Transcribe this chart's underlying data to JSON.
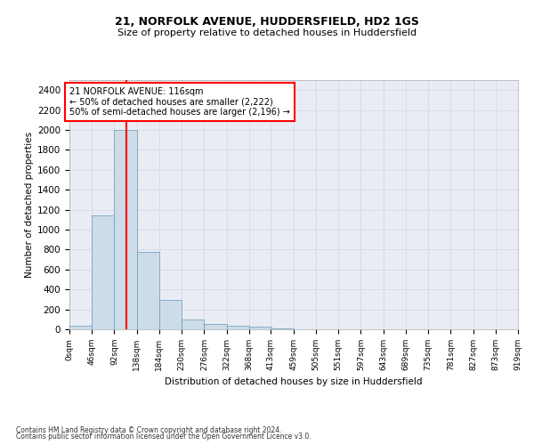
{
  "title1": "21, NORFOLK AVENUE, HUDDERSFIELD, HD2 1GS",
  "title2": "Size of property relative to detached houses in Huddersfield",
  "xlabel": "Distribution of detached houses by size in Huddersfield",
  "ylabel": "Number of detached properties",
  "footnote1": "Contains HM Land Registry data © Crown copyright and database right 2024.",
  "footnote2": "Contains public sector information licensed under the Open Government Licence v3.0.",
  "property_size": 116,
  "property_label": "21 NORFOLK AVENUE: 116sqm",
  "annotation_line1": "← 50% of detached houses are smaller (2,222)",
  "annotation_line2": "50% of semi-detached houses are larger (2,196) →",
  "bar_edges": [
    0,
    46,
    92,
    138,
    184,
    230,
    276,
    322,
    368,
    413,
    459,
    505,
    551,
    597,
    643,
    689,
    735,
    781,
    827,
    873,
    919
  ],
  "bar_values": [
    40,
    1140,
    2000,
    780,
    295,
    95,
    50,
    35,
    25,
    10,
    0,
    0,
    0,
    0,
    0,
    0,
    0,
    0,
    0,
    0
  ],
  "tick_labels": [
    "0sqm",
    "46sqm",
    "92sqm",
    "138sqm",
    "184sqm",
    "230sqm",
    "276sqm",
    "322sqm",
    "368sqm",
    "413sqm",
    "459sqm",
    "505sqm",
    "551sqm",
    "597sqm",
    "643sqm",
    "689sqm",
    "735sqm",
    "781sqm",
    "827sqm",
    "873sqm",
    "919sqm"
  ],
  "ylim": [
    0,
    2500
  ],
  "yticks": [
    0,
    200,
    400,
    600,
    800,
    1000,
    1200,
    1400,
    1600,
    1800,
    2000,
    2200,
    2400
  ],
  "bar_color": "#ccdce8",
  "bar_edge_color": "#6699bb",
  "redline_x": 116,
  "grid_color": "#d0d4e8",
  "background_color": "#eaecf4"
}
